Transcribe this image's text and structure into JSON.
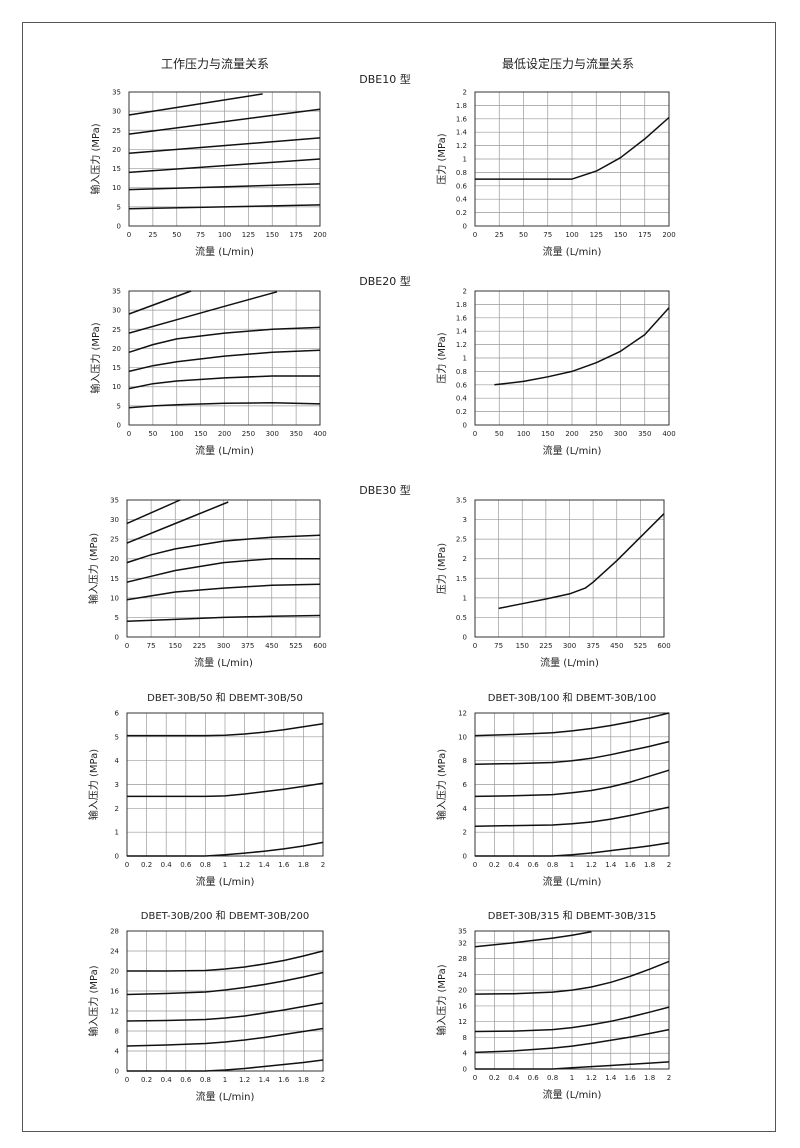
{
  "headers": {
    "left": "工作压力与流量关系",
    "right": "最低设定压力与流量关系"
  },
  "sections": {
    "dbe10": "DBE10 型",
    "dbe20": "DBE20 型",
    "dbe30": "DBE30 型"
  },
  "chart_data": [
    {
      "id": "dbe10-working",
      "type": "line",
      "xlabel": "流量  (L/min)",
      "ylabel": "输入压力  (MPa)",
      "xticks": [
        0,
        25,
        50,
        75,
        100,
        125,
        150,
        175,
        200
      ],
      "yticks": [
        0,
        5,
        10,
        15,
        20,
        25,
        30,
        35
      ],
      "xlim": [
        0,
        200
      ],
      "ylim": [
        0,
        35
      ],
      "grid": true,
      "series": [
        {
          "x": [
            0,
            200
          ],
          "y": [
            4.5,
            5.5
          ]
        },
        {
          "x": [
            0,
            200
          ],
          "y": [
            9.5,
            11
          ]
        },
        {
          "x": [
            0,
            200
          ],
          "y": [
            14,
            17.5
          ]
        },
        {
          "x": [
            0,
            200
          ],
          "y": [
            19,
            23
          ]
        },
        {
          "x": [
            0,
            200
          ],
          "y": [
            24,
            30.5
          ]
        },
        {
          "x": [
            0,
            140
          ],
          "y": [
            29,
            34.5
          ]
        }
      ]
    },
    {
      "id": "dbe10-min",
      "type": "line",
      "xlabel": "流量  (L/min)",
      "ylabel": "压力  (MPa)",
      "xticks": [
        0,
        25,
        50,
        75,
        100,
        125,
        150,
        175,
        200
      ],
      "yticks": [
        0,
        0.2,
        0.4,
        0.6,
        0.8,
        1.0,
        1.2,
        1.4,
        1.6,
        1.8,
        2.0
      ],
      "xlim": [
        0,
        200
      ],
      "ylim": [
        0,
        2.0
      ],
      "grid": true,
      "series": [
        {
          "x": [
            0,
            25,
            50,
            75,
            100,
            125,
            150,
            175,
            200
          ],
          "y": [
            0.7,
            0.7,
            0.7,
            0.7,
            0.7,
            0.82,
            1.02,
            1.3,
            1.62
          ]
        }
      ]
    },
    {
      "id": "dbe20-working",
      "type": "line",
      "xlabel": "流量  (L/min)",
      "ylabel": "输入压力  (MPa)",
      "xticks": [
        0,
        50,
        100,
        150,
        200,
        250,
        300,
        350,
        400
      ],
      "yticks": [
        0,
        5,
        10,
        15,
        20,
        25,
        30,
        35
      ],
      "xlim": [
        0,
        400
      ],
      "ylim": [
        0,
        35
      ],
      "grid": true,
      "series": [
        {
          "x": [
            0,
            50,
            100,
            200,
            300,
            400
          ],
          "y": [
            4.5,
            5,
            5.3,
            5.7,
            5.8,
            5.5
          ]
        },
        {
          "x": [
            0,
            50,
            100,
            200,
            300,
            400
          ],
          "y": [
            9.5,
            10.8,
            11.5,
            12.3,
            12.8,
            12.8
          ]
        },
        {
          "x": [
            0,
            50,
            100,
            200,
            300,
            400
          ],
          "y": [
            14,
            15.5,
            16.5,
            18,
            19,
            19.5
          ]
        },
        {
          "x": [
            0,
            50,
            100,
            200,
            300,
            400
          ],
          "y": [
            19,
            21,
            22.5,
            24,
            25,
            25.5
          ]
        },
        {
          "x": [
            0,
            100,
            200,
            310
          ],
          "y": [
            24,
            27.5,
            31,
            34.8
          ]
        },
        {
          "x": [
            0,
            130
          ],
          "y": [
            29,
            35
          ]
        }
      ]
    },
    {
      "id": "dbe20-min",
      "type": "line",
      "xlabel": "流量  (L/min)",
      "ylabel": "压力  (MPa)",
      "xticks": [
        0,
        50,
        100,
        150,
        200,
        250,
        300,
        350,
        400
      ],
      "yticks": [
        0,
        0.2,
        0.4,
        0.6,
        0.8,
        1.0,
        1.2,
        1.4,
        1.6,
        1.8,
        2.0
      ],
      "xlim": [
        0,
        400
      ],
      "ylim": [
        0,
        2.0
      ],
      "grid": true,
      "series": [
        {
          "x": [
            40,
            100,
            150,
            200,
            250,
            300,
            350,
            400
          ],
          "y": [
            0.6,
            0.65,
            0.72,
            0.8,
            0.93,
            1.1,
            1.35,
            1.75
          ]
        }
      ]
    },
    {
      "id": "dbe30-working",
      "type": "line",
      "xlabel": "流量  (L/min)",
      "ylabel": "输入压力  (MPa)",
      "xticks": [
        0,
        75,
        150,
        225,
        300,
        375,
        450,
        525,
        600
      ],
      "yticks": [
        0,
        5,
        10,
        15,
        20,
        25,
        30,
        35
      ],
      "xlim": [
        0,
        600
      ],
      "ylim": [
        0,
        35
      ],
      "grid": true,
      "series": [
        {
          "x": [
            0,
            150,
            300,
            450,
            600
          ],
          "y": [
            4,
            4.5,
            5,
            5.3,
            5.5
          ]
        },
        {
          "x": [
            0,
            75,
            150,
            300,
            450,
            600
          ],
          "y": [
            9.5,
            10.5,
            11.5,
            12.5,
            13.2,
            13.5
          ]
        },
        {
          "x": [
            0,
            75,
            150,
            300,
            450,
            600
          ],
          "y": [
            14,
            15.5,
            17,
            19,
            20,
            20
          ]
        },
        {
          "x": [
            0,
            75,
            150,
            300,
            450,
            600
          ],
          "y": [
            19,
            21,
            22.5,
            24.5,
            25.5,
            26
          ]
        },
        {
          "x": [
            0,
            150,
            315
          ],
          "y": [
            24,
            29,
            34.5
          ]
        },
        {
          "x": [
            0,
            165
          ],
          "y": [
            29,
            35
          ]
        }
      ]
    },
    {
      "id": "dbe30-min",
      "type": "line",
      "xlabel": "流量  (L/min)",
      "ylabel": "压力  (MPa)",
      "xticks": [
        0,
        75,
        150,
        225,
        300,
        375,
        450,
        525,
        600
      ],
      "yticks": [
        0,
        0.5,
        1.0,
        1.5,
        2.0,
        2.5,
        3.0,
        3.5
      ],
      "xlim": [
        0,
        600
      ],
      "ylim": [
        0,
        3.5
      ],
      "grid": true,
      "series": [
        {
          "x": [
            75,
            150,
            225,
            300,
            350,
            375,
            450,
            525,
            600
          ],
          "y": [
            0.73,
            0.85,
            0.97,
            1.1,
            1.25,
            1.4,
            1.95,
            2.55,
            3.15
          ]
        }
      ]
    },
    {
      "id": "dbet-50",
      "type": "line",
      "title": "DBET-30B/50 和 DBEMT-30B/50",
      "xlabel": "流量  (L/min)",
      "ylabel": "输入压力  (MPa)",
      "xticks": [
        0,
        0.2,
        0.4,
        0.6,
        0.8,
        1.0,
        1.2,
        1.4,
        1.6,
        1.8,
        2.0
      ],
      "yticks": [
        0,
        1,
        2,
        3,
        4,
        5,
        6
      ],
      "xlim": [
        0,
        2.0
      ],
      "ylim": [
        0,
        6
      ],
      "grid": true,
      "series": [
        {
          "x": [
            0,
            0.8,
            1.0,
            1.2,
            1.4,
            1.6,
            1.8,
            2.0
          ],
          "y": [
            0,
            0,
            0.05,
            0.12,
            0.2,
            0.3,
            0.42,
            0.57
          ]
        },
        {
          "x": [
            0,
            0.4,
            0.8,
            1.0,
            1.2,
            1.4,
            1.6,
            1.8,
            2.0
          ],
          "y": [
            2.5,
            2.5,
            2.5,
            2.52,
            2.6,
            2.7,
            2.8,
            2.92,
            3.05
          ]
        },
        {
          "x": [
            0,
            0.4,
            0.8,
            1.0,
            1.2,
            1.4,
            1.6,
            1.8,
            2.0
          ],
          "y": [
            5.05,
            5.05,
            5.05,
            5.07,
            5.12,
            5.2,
            5.3,
            5.42,
            5.55
          ]
        }
      ]
    },
    {
      "id": "dbet-100",
      "type": "line",
      "title": "DBET-30B/100 和 DBEMT-30B/100",
      "xlabel": "流量  (L/min)",
      "ylabel": "输入压力  (MPa)",
      "xticks": [
        0,
        0.2,
        0.4,
        0.6,
        0.8,
        1.0,
        1.2,
        1.4,
        1.6,
        1.8,
        2.0
      ],
      "yticks": [
        0,
        2,
        4,
        6,
        8,
        10,
        12
      ],
      "xlim": [
        0,
        2.0
      ],
      "ylim": [
        0,
        12
      ],
      "grid": true,
      "series": [
        {
          "x": [
            0,
            0.8,
            1.0,
            1.2,
            1.4,
            1.6,
            1.8,
            2.0
          ],
          "y": [
            0,
            0,
            0.1,
            0.25,
            0.45,
            0.65,
            0.85,
            1.1
          ]
        },
        {
          "x": [
            0,
            0.4,
            0.8,
            1.0,
            1.2,
            1.4,
            1.6,
            1.8,
            2.0
          ],
          "y": [
            2.5,
            2.55,
            2.6,
            2.7,
            2.85,
            3.1,
            3.4,
            3.75,
            4.1
          ]
        },
        {
          "x": [
            0,
            0.4,
            0.8,
            1.0,
            1.2,
            1.4,
            1.6,
            1.8,
            2.0
          ],
          "y": [
            5.0,
            5.05,
            5.15,
            5.3,
            5.5,
            5.8,
            6.2,
            6.7,
            7.2
          ]
        },
        {
          "x": [
            0,
            0.4,
            0.8,
            1.0,
            1.2,
            1.4,
            1.6,
            1.8,
            2.0
          ],
          "y": [
            7.7,
            7.75,
            7.85,
            8.0,
            8.2,
            8.5,
            8.85,
            9.2,
            9.6
          ]
        },
        {
          "x": [
            0,
            0.4,
            0.8,
            1.0,
            1.2,
            1.4,
            1.6,
            1.8,
            2.0
          ],
          "y": [
            10.1,
            10.2,
            10.35,
            10.5,
            10.7,
            10.95,
            11.25,
            11.6,
            12.0
          ]
        }
      ]
    },
    {
      "id": "dbet-200",
      "type": "line",
      "title": "DBET-30B/200 和 DBEMT-30B/200",
      "xlabel": "流量  (L/min)",
      "ylabel": "输入压力  (MPa)",
      "xticks": [
        0,
        0.2,
        0.4,
        0.6,
        0.8,
        1.0,
        1.2,
        1.4,
        1.6,
        1.8,
        2.0
      ],
      "yticks": [
        0,
        4,
        8,
        12,
        16,
        20,
        24,
        28
      ],
      "xlim": [
        0,
        2.0
      ],
      "ylim": [
        0,
        28
      ],
      "grid": true,
      "series": [
        {
          "x": [
            0,
            0.8,
            1.0,
            1.2,
            1.4,
            1.6,
            1.8,
            2.0
          ],
          "y": [
            0,
            0,
            0.2,
            0.5,
            0.9,
            1.3,
            1.7,
            2.2
          ]
        },
        {
          "x": [
            0,
            0.4,
            0.8,
            1.0,
            1.2,
            1.4,
            1.6,
            1.8,
            2.0
          ],
          "y": [
            5.0,
            5.2,
            5.5,
            5.8,
            6.2,
            6.7,
            7.3,
            7.9,
            8.5
          ]
        },
        {
          "x": [
            0,
            0.4,
            0.8,
            1.0,
            1.2,
            1.4,
            1.6,
            1.8,
            2.0
          ],
          "y": [
            10.0,
            10.1,
            10.3,
            10.6,
            11.0,
            11.6,
            12.2,
            12.9,
            13.6
          ]
        },
        {
          "x": [
            0,
            0.4,
            0.8,
            1.0,
            1.2,
            1.4,
            1.6,
            1.8,
            2.0
          ],
          "y": [
            15.3,
            15.5,
            15.8,
            16.2,
            16.7,
            17.3,
            18.0,
            18.8,
            19.7
          ]
        },
        {
          "x": [
            0,
            0.4,
            0.8,
            1.0,
            1.2,
            1.4,
            1.6,
            1.8,
            2.0
          ],
          "y": [
            20.0,
            20.0,
            20.1,
            20.4,
            20.8,
            21.4,
            22.1,
            23.0,
            24.0
          ]
        }
      ]
    },
    {
      "id": "dbet-315",
      "type": "line",
      "title": "DBET-30B/315 和 DBEMT-30B/315",
      "xlabel": "流量  (L/min)",
      "ylabel": "输入压力  (MPa)",
      "xticks": [
        0,
        0.2,
        0.4,
        0.6,
        0.8,
        1.0,
        1.2,
        1.4,
        1.6,
        1.8,
        2.0
      ],
      "yticks": [
        0,
        4,
        8,
        12,
        16,
        20,
        24,
        28,
        32,
        35
      ],
      "xlim": [
        0,
        2.0
      ],
      "ylim": [
        0,
        35
      ],
      "grid": true,
      "series": [
        {
          "x": [
            0,
            0.8,
            1.0,
            1.2,
            1.4,
            1.6,
            1.8,
            2.0
          ],
          "y": [
            0,
            0,
            0.3,
            0.6,
            0.9,
            1.2,
            1.5,
            1.8
          ]
        },
        {
          "x": [
            0,
            0.4,
            0.8,
            1.0,
            1.2,
            1.4,
            1.6,
            1.8,
            2.0
          ],
          "y": [
            4.2,
            4.6,
            5.3,
            5.8,
            6.5,
            7.3,
            8.1,
            9.0,
            10.0
          ]
        },
        {
          "x": [
            0,
            0.4,
            0.8,
            1.0,
            1.2,
            1.4,
            1.6,
            1.8,
            2.0
          ],
          "y": [
            9.5,
            9.6,
            10.0,
            10.5,
            11.2,
            12.1,
            13.2,
            14.4,
            15.7
          ]
        },
        {
          "x": [
            0,
            0.4,
            0.8,
            1.0,
            1.2,
            1.4,
            1.6,
            1.8,
            2.0
          ],
          "y": [
            19.0,
            19.1,
            19.5,
            20.0,
            20.8,
            22.0,
            23.5,
            25.3,
            27.3
          ]
        },
        {
          "x": [
            0,
            0.4,
            0.8,
            1.0,
            1.2
          ],
          "y": [
            31.0,
            32.0,
            33.2,
            33.9,
            34.8
          ]
        }
      ]
    }
  ]
}
